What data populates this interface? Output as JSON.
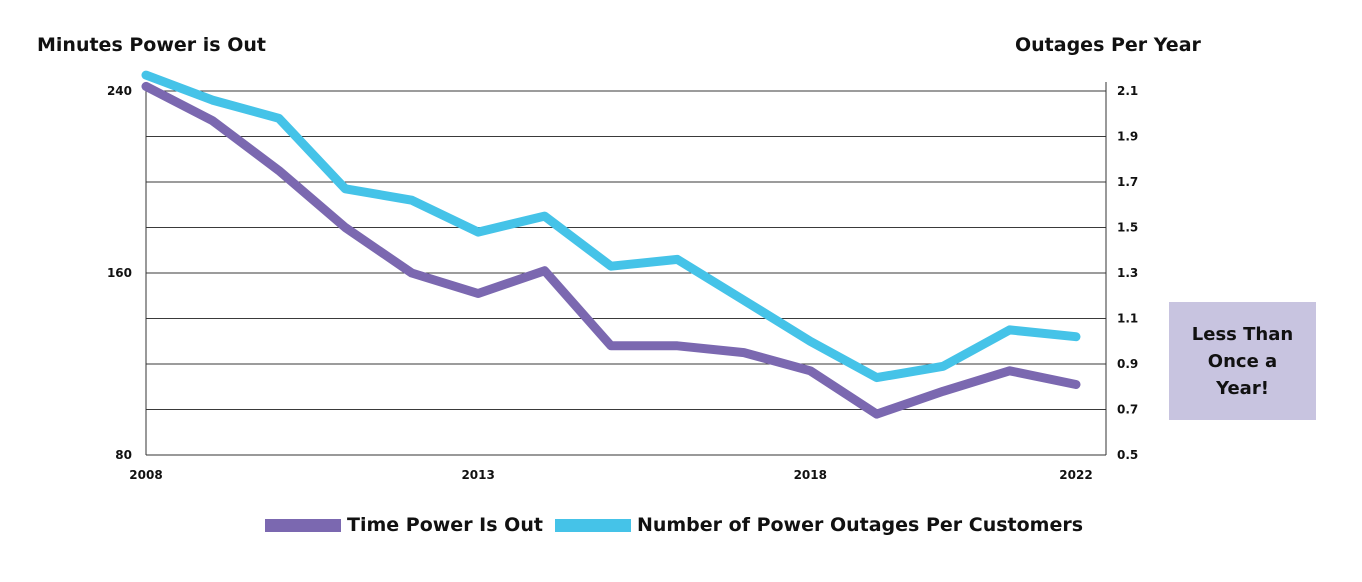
{
  "chart_data": {
    "type": "line",
    "title": "",
    "left_axis": {
      "label": "Minutes Power is Out",
      "range": [
        80,
        240
      ],
      "ticks": [
        "240",
        "160",
        "80"
      ],
      "tick_values": [
        240,
        160,
        80
      ]
    },
    "right_axis": {
      "label": "Outages Per Year",
      "range": [
        0.5,
        2.1
      ],
      "ticks": [
        "2.1",
        "1.9",
        "1.7",
        "1.5",
        "1.3",
        "1.1",
        "0.9",
        "0.7",
        "0.5"
      ],
      "tick_values": [
        2.1,
        1.9,
        1.7,
        1.5,
        1.3,
        1.1,
        0.9,
        0.7,
        0.5
      ]
    },
    "x": [
      2008,
      2009,
      2010,
      2011,
      2012,
      2013,
      2014,
      2015,
      2016,
      2017,
      2018,
      2019,
      2020,
      2021,
      2022
    ],
    "x_tick_labels": [
      "2008",
      "2013",
      "2018",
      "2022"
    ],
    "x_tick_values": [
      2008,
      2013,
      2018,
      2022
    ],
    "series": [
      {
        "name": "Time Power Is Out",
        "axis": "left",
        "color": "#7b68b0",
        "values": [
          242,
          227,
          205,
          180,
          160,
          151,
          161,
          128,
          128,
          125,
          117,
          98,
          108,
          117,
          111
        ]
      },
      {
        "name": "Number of Power Outages Per Customers",
        "axis": "right",
        "color": "#45c3e8",
        "values": [
          2.17,
          2.06,
          1.98,
          1.67,
          1.62,
          1.48,
          1.55,
          1.33,
          1.36,
          1.18,
          1.0,
          0.84,
          0.89,
          1.05,
          1.02
        ]
      }
    ],
    "annotation": "Less Than Once a Year!"
  }
}
